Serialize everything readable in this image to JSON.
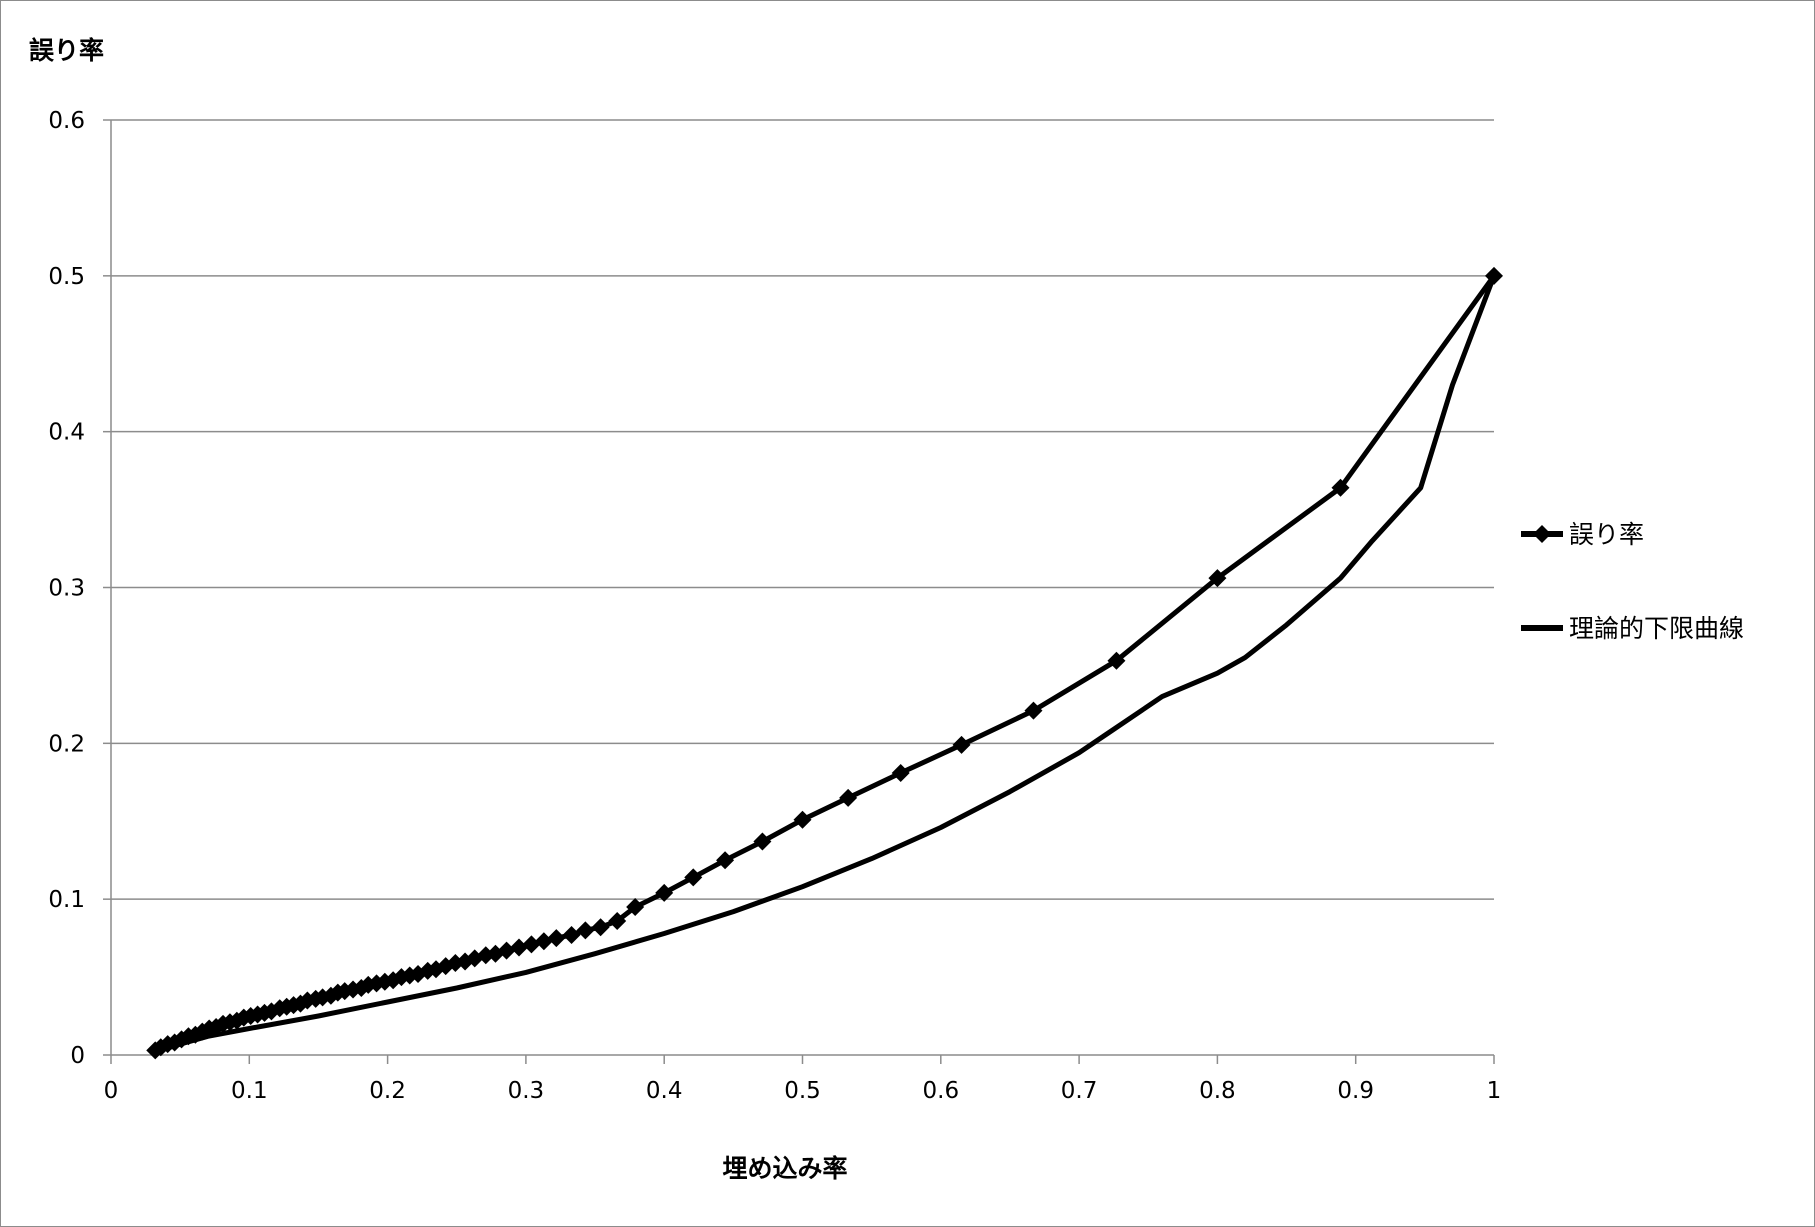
{
  "chart_data": {
    "type": "line",
    "title": "",
    "xlabel": "埋め込み率",
    "ylabel": "誤り率",
    "xlim": [
      0,
      1
    ],
    "ylim": [
      0,
      0.6
    ],
    "x_ticks": [
      "0",
      "0.1",
      "0.2",
      "0.3",
      "0.4",
      "0.5",
      "0.6",
      "0.7",
      "0.8",
      "0.9",
      "1"
    ],
    "y_ticks": [
      "0",
      "0.1",
      "0.2",
      "0.3",
      "0.4",
      "0.5",
      "0.6"
    ],
    "grid": "horizontal",
    "legend_position": "right",
    "colors": {
      "series": "#000000",
      "grid": "#8c8c8c",
      "axis": "#8c8c8c"
    },
    "series": [
      {
        "name": "誤り率",
        "marker": "diamond",
        "x": [
          0.032,
          0.036,
          0.041,
          0.046,
          0.051,
          0.056,
          0.061,
          0.066,
          0.071,
          0.076,
          0.081,
          0.086,
          0.091,
          0.096,
          0.101,
          0.106,
          0.111,
          0.116,
          0.122,
          0.127,
          0.132,
          0.137,
          0.142,
          0.148,
          0.153,
          0.159,
          0.164,
          0.169,
          0.175,
          0.181,
          0.186,
          0.192,
          0.198,
          0.204,
          0.21,
          0.216,
          0.222,
          0.229,
          0.235,
          0.242,
          0.249,
          0.256,
          0.263,
          0.271,
          0.278,
          0.286,
          0.295,
          0.304,
          0.313,
          0.322,
          0.333,
          0.343,
          0.354,
          0.366,
          0.379,
          0.4,
          0.421,
          0.444,
          0.471,
          0.5,
          0.533,
          0.571,
          0.615,
          0.667,
          0.727,
          0.8,
          0.889,
          1.0
        ],
        "y": [
          0.003,
          0.005,
          0.007,
          0.008,
          0.01,
          0.012,
          0.013,
          0.015,
          0.017,
          0.018,
          0.02,
          0.021,
          0.022,
          0.024,
          0.025,
          0.026,
          0.027,
          0.028,
          0.03,
          0.031,
          0.032,
          0.033,
          0.035,
          0.036,
          0.037,
          0.038,
          0.04,
          0.041,
          0.042,
          0.043,
          0.045,
          0.046,
          0.047,
          0.048,
          0.05,
          0.051,
          0.052,
          0.054,
          0.055,
          0.057,
          0.059,
          0.06,
          0.062,
          0.064,
          0.065,
          0.067,
          0.069,
          0.071,
          0.073,
          0.075,
          0.077,
          0.08,
          0.082,
          0.086,
          0.095,
          0.104,
          0.114,
          0.125,
          0.137,
          0.151,
          0.165,
          0.181,
          0.199,
          0.221,
          0.253,
          0.306,
          0.364,
          0.5
        ]
      },
      {
        "name": "理論的下限曲線",
        "marker": "none",
        "x": [
          0.032,
          0.05,
          0.07,
          0.1,
          0.15,
          0.2,
          0.25,
          0.3,
          0.35,
          0.4,
          0.45,
          0.5,
          0.55,
          0.6,
          0.65,
          0.7,
          0.72,
          0.76,
          0.8,
          0.82,
          0.85,
          0.889,
          0.912,
          0.947,
          0.97,
          1.0
        ],
        "y": [
          0.002,
          0.007,
          0.012,
          0.017,
          0.025,
          0.034,
          0.043,
          0.053,
          0.065,
          0.078,
          0.092,
          0.108,
          0.126,
          0.146,
          0.169,
          0.194,
          0.206,
          0.23,
          0.245,
          0.255,
          0.276,
          0.306,
          0.33,
          0.364,
          0.43,
          0.5
        ]
      }
    ]
  }
}
